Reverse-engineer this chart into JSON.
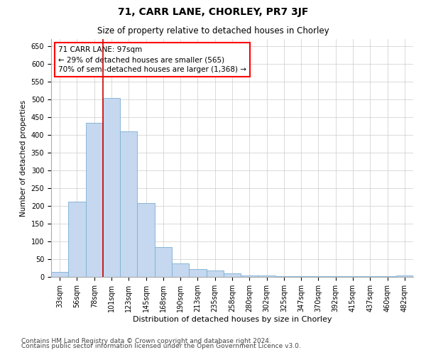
{
  "title1": "71, CARR LANE, CHORLEY, PR7 3JF",
  "title2": "Size of property relative to detached houses in Chorley",
  "xlabel": "Distribution of detached houses by size in Chorley",
  "ylabel": "Number of detached properties",
  "annotation_line1": "71 CARR LANE: 97sqm",
  "annotation_line2": "← 29% of detached houses are smaller (565)",
  "annotation_line3": "70% of semi-detached houses are larger (1,368) →",
  "bar_categories": [
    "33sqm",
    "56sqm",
    "78sqm",
    "101sqm",
    "123sqm",
    "145sqm",
    "168sqm",
    "190sqm",
    "213sqm",
    "235sqm",
    "258sqm",
    "280sqm",
    "302sqm",
    "325sqm",
    "347sqm",
    "370sqm",
    "392sqm",
    "415sqm",
    "437sqm",
    "460sqm",
    "482sqm"
  ],
  "bar_values": [
    15,
    213,
    435,
    505,
    410,
    208,
    85,
    38,
    22,
    18,
    10,
    5,
    4,
    3,
    3,
    3,
    3,
    3,
    2,
    2,
    4
  ],
  "bar_color": "#c5d8ef",
  "bar_edgecolor": "#7bafd4",
  "vline_color": "#cc0000",
  "vline_x_index": 3,
  "ylim": [
    0,
    670
  ],
  "yticks": [
    0,
    50,
    100,
    150,
    200,
    250,
    300,
    350,
    400,
    450,
    500,
    550,
    600,
    650
  ],
  "footnote1": "Contains HM Land Registry data © Crown copyright and database right 2024.",
  "footnote2": "Contains public sector information licensed under the Open Government Licence v3.0.",
  "background_color": "#ffffff",
  "grid_color": "#cccccc",
  "title1_fontsize": 10,
  "title2_fontsize": 8.5,
  "xlabel_fontsize": 8,
  "ylabel_fontsize": 7.5,
  "tick_fontsize": 7,
  "annotation_fontsize": 7.5,
  "footnote_fontsize": 6.5
}
